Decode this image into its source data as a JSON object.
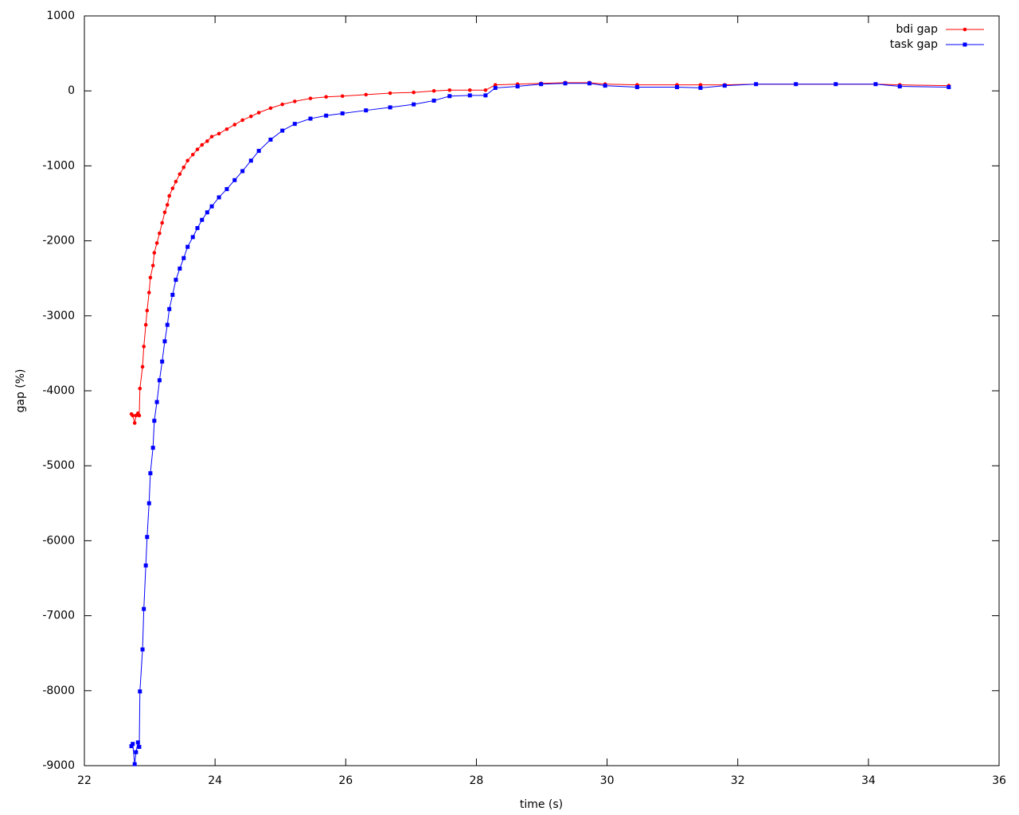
{
  "chart_data": {
    "type": "line",
    "xlabel": "time (s)",
    "ylabel": "gap (%)",
    "x": [
      22.72,
      22.74,
      22.77,
      22.79,
      22.82,
      22.84,
      22.85,
      22.89,
      22.91,
      22.94,
      22.96,
      22.99,
      23.01,
      23.05,
      23.07,
      23.11,
      23.15,
      23.19,
      23.23,
      23.27,
      23.3,
      23.35,
      23.4,
      23.46,
      23.52,
      23.58,
      23.66,
      23.73,
      23.8,
      23.88,
      23.95,
      24.06,
      24.18,
      24.3,
      24.42,
      24.55,
      24.67,
      24.85,
      25.03,
      25.22,
      25.46,
      25.7,
      25.95,
      26.31,
      26.68,
      27.04,
      27.35,
      27.59,
      27.9,
      28.14,
      28.29,
      28.63,
      28.99,
      29.36,
      29.73,
      29.97,
      30.46,
      31.07,
      31.43,
      31.8,
      32.28,
      32.89,
      33.5,
      34.11,
      34.48,
      35.23
    ],
    "series": [
      {
        "name": "bdi gap",
        "color": "#ff0000",
        "marker": "circle",
        "values": [
          -4310,
          -4330,
          -4430,
          -4330,
          -4300,
          -4330,
          -3970,
          -3680,
          -3410,
          -3120,
          -2930,
          -2690,
          -2490,
          -2330,
          -2160,
          -2030,
          -1900,
          -1760,
          -1620,
          -1520,
          -1400,
          -1300,
          -1210,
          -1110,
          -1020,
          -930,
          -850,
          -780,
          -720,
          -670,
          -610,
          -570,
          -510,
          -450,
          -390,
          -340,
          -290,
          -230,
          -180,
          -140,
          -100,
          -80,
          -70,
          -50,
          -30,
          -20,
          0,
          10,
          10,
          10,
          80,
          90,
          100,
          110,
          110,
          90,
          80,
          80,
          80,
          80,
          90,
          90,
          90,
          90,
          80,
          70
        ]
      },
      {
        "name": "task gap",
        "color": "#0000ff",
        "marker": "square",
        "values": [
          -8740,
          -8710,
          -8980,
          -8820,
          -8690,
          -8750,
          -8010,
          -7450,
          -6910,
          -6330,
          -5950,
          -5500,
          -5100,
          -4760,
          -4400,
          -4150,
          -3860,
          -3610,
          -3340,
          -3120,
          -2910,
          -2720,
          -2520,
          -2370,
          -2230,
          -2080,
          -1950,
          -1830,
          -1720,
          -1620,
          -1540,
          -1420,
          -1310,
          -1190,
          -1070,
          -930,
          -800,
          -650,
          -530,
          -440,
          -370,
          -330,
          -300,
          -260,
          -220,
          -180,
          -130,
          -70,
          -60,
          -60,
          40,
          60,
          90,
          100,
          100,
          70,
          50,
          50,
          40,
          70,
          90,
          90,
          90,
          90,
          60,
          50
        ]
      }
    ],
    "xlim": [
      22,
      36
    ],
    "xticks": [
      22,
      24,
      26,
      28,
      30,
      32,
      34,
      36
    ],
    "ylim": [
      -9000,
      1000
    ],
    "yticks": [
      -9000,
      -8000,
      -7000,
      -6000,
      -5000,
      -4000,
      -3000,
      -2000,
      -1000,
      0,
      1000
    ],
    "legend": "top-right",
    "grid": false
  }
}
